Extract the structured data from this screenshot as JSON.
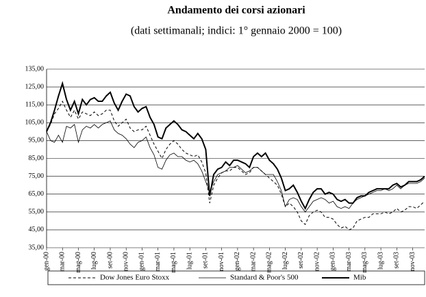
{
  "chart_data": {
    "type": "line",
    "title": "Andamento dei corsi azionari",
    "subtitle": "(dati settimanali; indici: 1° gennaio 2000 = 100)",
    "categories": [
      "gen-00",
      null,
      null,
      null,
      "mar-00",
      null,
      null,
      null,
      "mag-00",
      null,
      null,
      null,
      "lug-00",
      null,
      null,
      null,
      "set-00",
      null,
      null,
      null,
      "nov-00",
      null,
      null,
      null,
      "gen-01",
      null,
      null,
      null,
      "mar-01",
      null,
      null,
      null,
      "mag-01",
      null,
      null,
      null,
      "lug-01",
      null,
      null,
      null,
      "set-01",
      null,
      null,
      null,
      "nov-01",
      null,
      null,
      null,
      "gen-02",
      null,
      null,
      null,
      "mar-02",
      null,
      null,
      null,
      "mag-02",
      null,
      null,
      null,
      "lug-02",
      null,
      null,
      null,
      "set-02",
      null,
      null,
      null,
      "nov-02",
      null,
      null,
      null,
      "gen-03",
      null,
      null,
      null,
      "mar-03",
      null,
      null,
      null,
      "mag-03",
      null,
      null,
      null,
      "lug-03",
      null,
      null,
      null,
      "set-03",
      null,
      null,
      null,
      "nov-03",
      null,
      null,
      null
    ],
    "series": [
      {
        "name": "Dow Jones Euro Stoxx",
        "color": "#000000",
        "width": 1,
        "dash": "4,3",
        "values": [
          100,
          104,
          110,
          113,
          117,
          112,
          108,
          112,
          107,
          111,
          110,
          109,
          111,
          109,
          110,
          112,
          112,
          106,
          103,
          105,
          107,
          102,
          100,
          101,
          101,
          103,
          98,
          93,
          89,
          85,
          90,
          93,
          95,
          93,
          90,
          88,
          87,
          86,
          87,
          83,
          77,
          60,
          70,
          74,
          77,
          78,
          78,
          80,
          80,
          78,
          76,
          77,
          80,
          80,
          78,
          76,
          74,
          72,
          70,
          65,
          58,
          60,
          58,
          55,
          50,
          48,
          53,
          55,
          56,
          55,
          52,
          52,
          51,
          48,
          46,
          47,
          45,
          46,
          50,
          51,
          52,
          52,
          54,
          54,
          54,
          55,
          54,
          55,
          57,
          55,
          56,
          58,
          58,
          57,
          59,
          61
        ]
      },
      {
        "name": "Standard & Poor's 500",
        "color": "#000000",
        "width": 0.8,
        "dash": "",
        "values": [
          100,
          95,
          94,
          98,
          94,
          103,
          102,
          104,
          94,
          101,
          103,
          102,
          104,
          102,
          104,
          105,
          106,
          101,
          99,
          98,
          96,
          93,
          91,
          94,
          95,
          97,
          91,
          87,
          80,
          79,
          84,
          87,
          88,
          86,
          86,
          84,
          83,
          84,
          82,
          78,
          72,
          66,
          72,
          76,
          77,
          78,
          80,
          80,
          81,
          79,
          77,
          78,
          80,
          80,
          78,
          76,
          76,
          76,
          72,
          67,
          58,
          62,
          63,
          62,
          58,
          55,
          58,
          61,
          62,
          63,
          62,
          60,
          61,
          58,
          57,
          58,
          57,
          60,
          62,
          63,
          64,
          65,
          66,
          67,
          67,
          68,
          67,
          68,
          70,
          68,
          70,
          71,
          71,
          71,
          72,
          74
        ]
      },
      {
        "name": "Mib",
        "color": "#000000",
        "width": 2,
        "dash": "",
        "values": [
          100,
          105,
          112,
          120,
          127,
          118,
          112,
          117,
          110,
          118,
          115,
          118,
          119,
          117,
          117,
          120,
          122,
          116,
          112,
          117,
          121,
          120,
          114,
          111,
          113,
          114,
          108,
          104,
          97,
          96,
          102,
          104,
          106,
          104,
          101,
          100,
          98,
          96,
          99,
          96,
          90,
          64,
          76,
          79,
          80,
          83,
          81,
          84,
          84,
          83,
          82,
          80,
          86,
          88,
          86,
          88,
          84,
          82,
          79,
          74,
          67,
          68,
          70,
          66,
          61,
          57,
          62,
          66,
          68,
          68,
          65,
          66,
          65,
          62,
          61,
          62,
          60,
          60,
          63,
          64,
          64,
          66,
          67,
          68,
          68,
          68,
          68,
          70,
          71,
          69,
          70,
          72,
          72,
          72,
          73,
          75
        ]
      }
    ],
    "ylim": [
      35,
      135
    ],
    "yticks": [
      {
        "value": 35,
        "label": "35,00"
      },
      {
        "value": 45,
        "label": "45,00"
      },
      {
        "value": 55,
        "label": "55,00"
      },
      {
        "value": 65,
        "label": "65,00"
      },
      {
        "value": 75,
        "label": "75,00"
      },
      {
        "value": 85,
        "label": "85,00"
      },
      {
        "value": 95,
        "label": "95,00"
      },
      {
        "value": 105,
        "label": "105,00"
      },
      {
        "value": 115,
        "label": "115,00"
      },
      {
        "value": 125,
        "label": "125,00"
      },
      {
        "value": 135,
        "label": "135,00"
      }
    ],
    "grid": true,
    "legend": "bottom"
  }
}
